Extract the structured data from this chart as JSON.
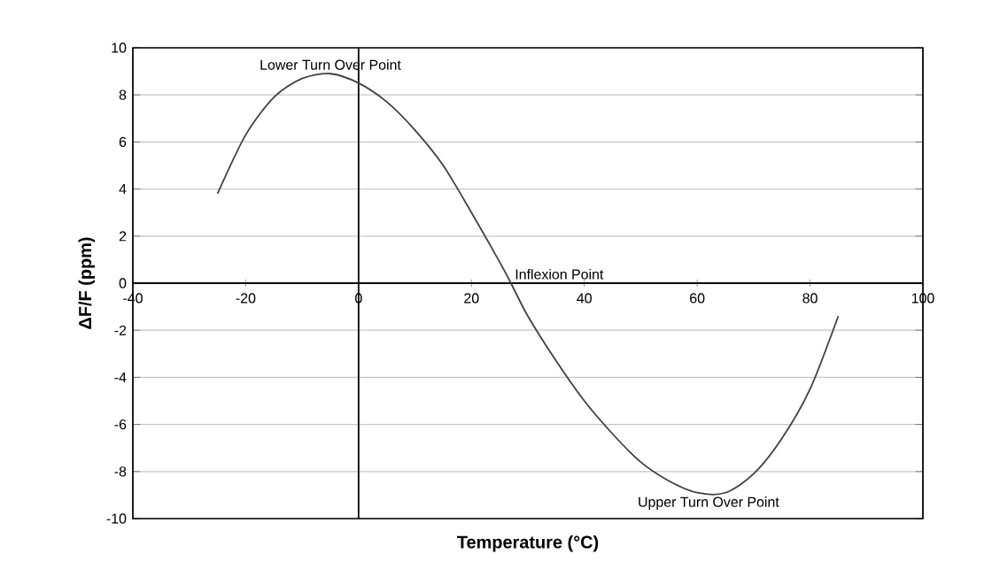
{
  "chart_data": {
    "type": "line",
    "xlabel": "Temperature (°C)",
    "ylabel": "ΔF/F (ppm)",
    "x": [
      -25,
      -20,
      -15,
      -10,
      -5,
      0,
      5,
      10,
      15,
      20,
      25,
      27,
      30,
      35,
      40,
      45,
      50,
      55,
      60,
      65,
      70,
      75,
      80,
      85
    ],
    "series": [
      {
        "color": "#404040",
        "values": [
          3.8,
          6.3,
          7.9,
          8.7,
          8.9,
          8.5,
          7.7,
          6.5,
          5.0,
          3.0,
          0.9,
          0,
          -1.4,
          -3.3,
          -5.0,
          -6.4,
          -7.6,
          -8.4,
          -8.9,
          -8.9,
          -8.1,
          -6.6,
          -4.5,
          -1.4
        ]
      }
    ],
    "xlim": [
      -40,
      100
    ],
    "xticks": [
      -40,
      -20,
      0,
      20,
      40,
      60,
      80,
      100
    ],
    "ylim": [
      -10,
      10
    ],
    "yticks": [
      -10,
      -8,
      -6,
      -4,
      -2,
      0,
      2,
      4,
      6,
      8,
      10
    ],
    "grid": "y",
    "marker": "none",
    "line_style": "solid",
    "annotations": [
      {
        "text": "Lower Turn Over Point",
        "x": -5,
        "y": 8.9
      },
      {
        "text": "Inflexion Point",
        "x": 27,
        "y": 0
      },
      {
        "text": "Upper Turn Over Point",
        "x": 62,
        "y": -8.9
      }
    ]
  }
}
